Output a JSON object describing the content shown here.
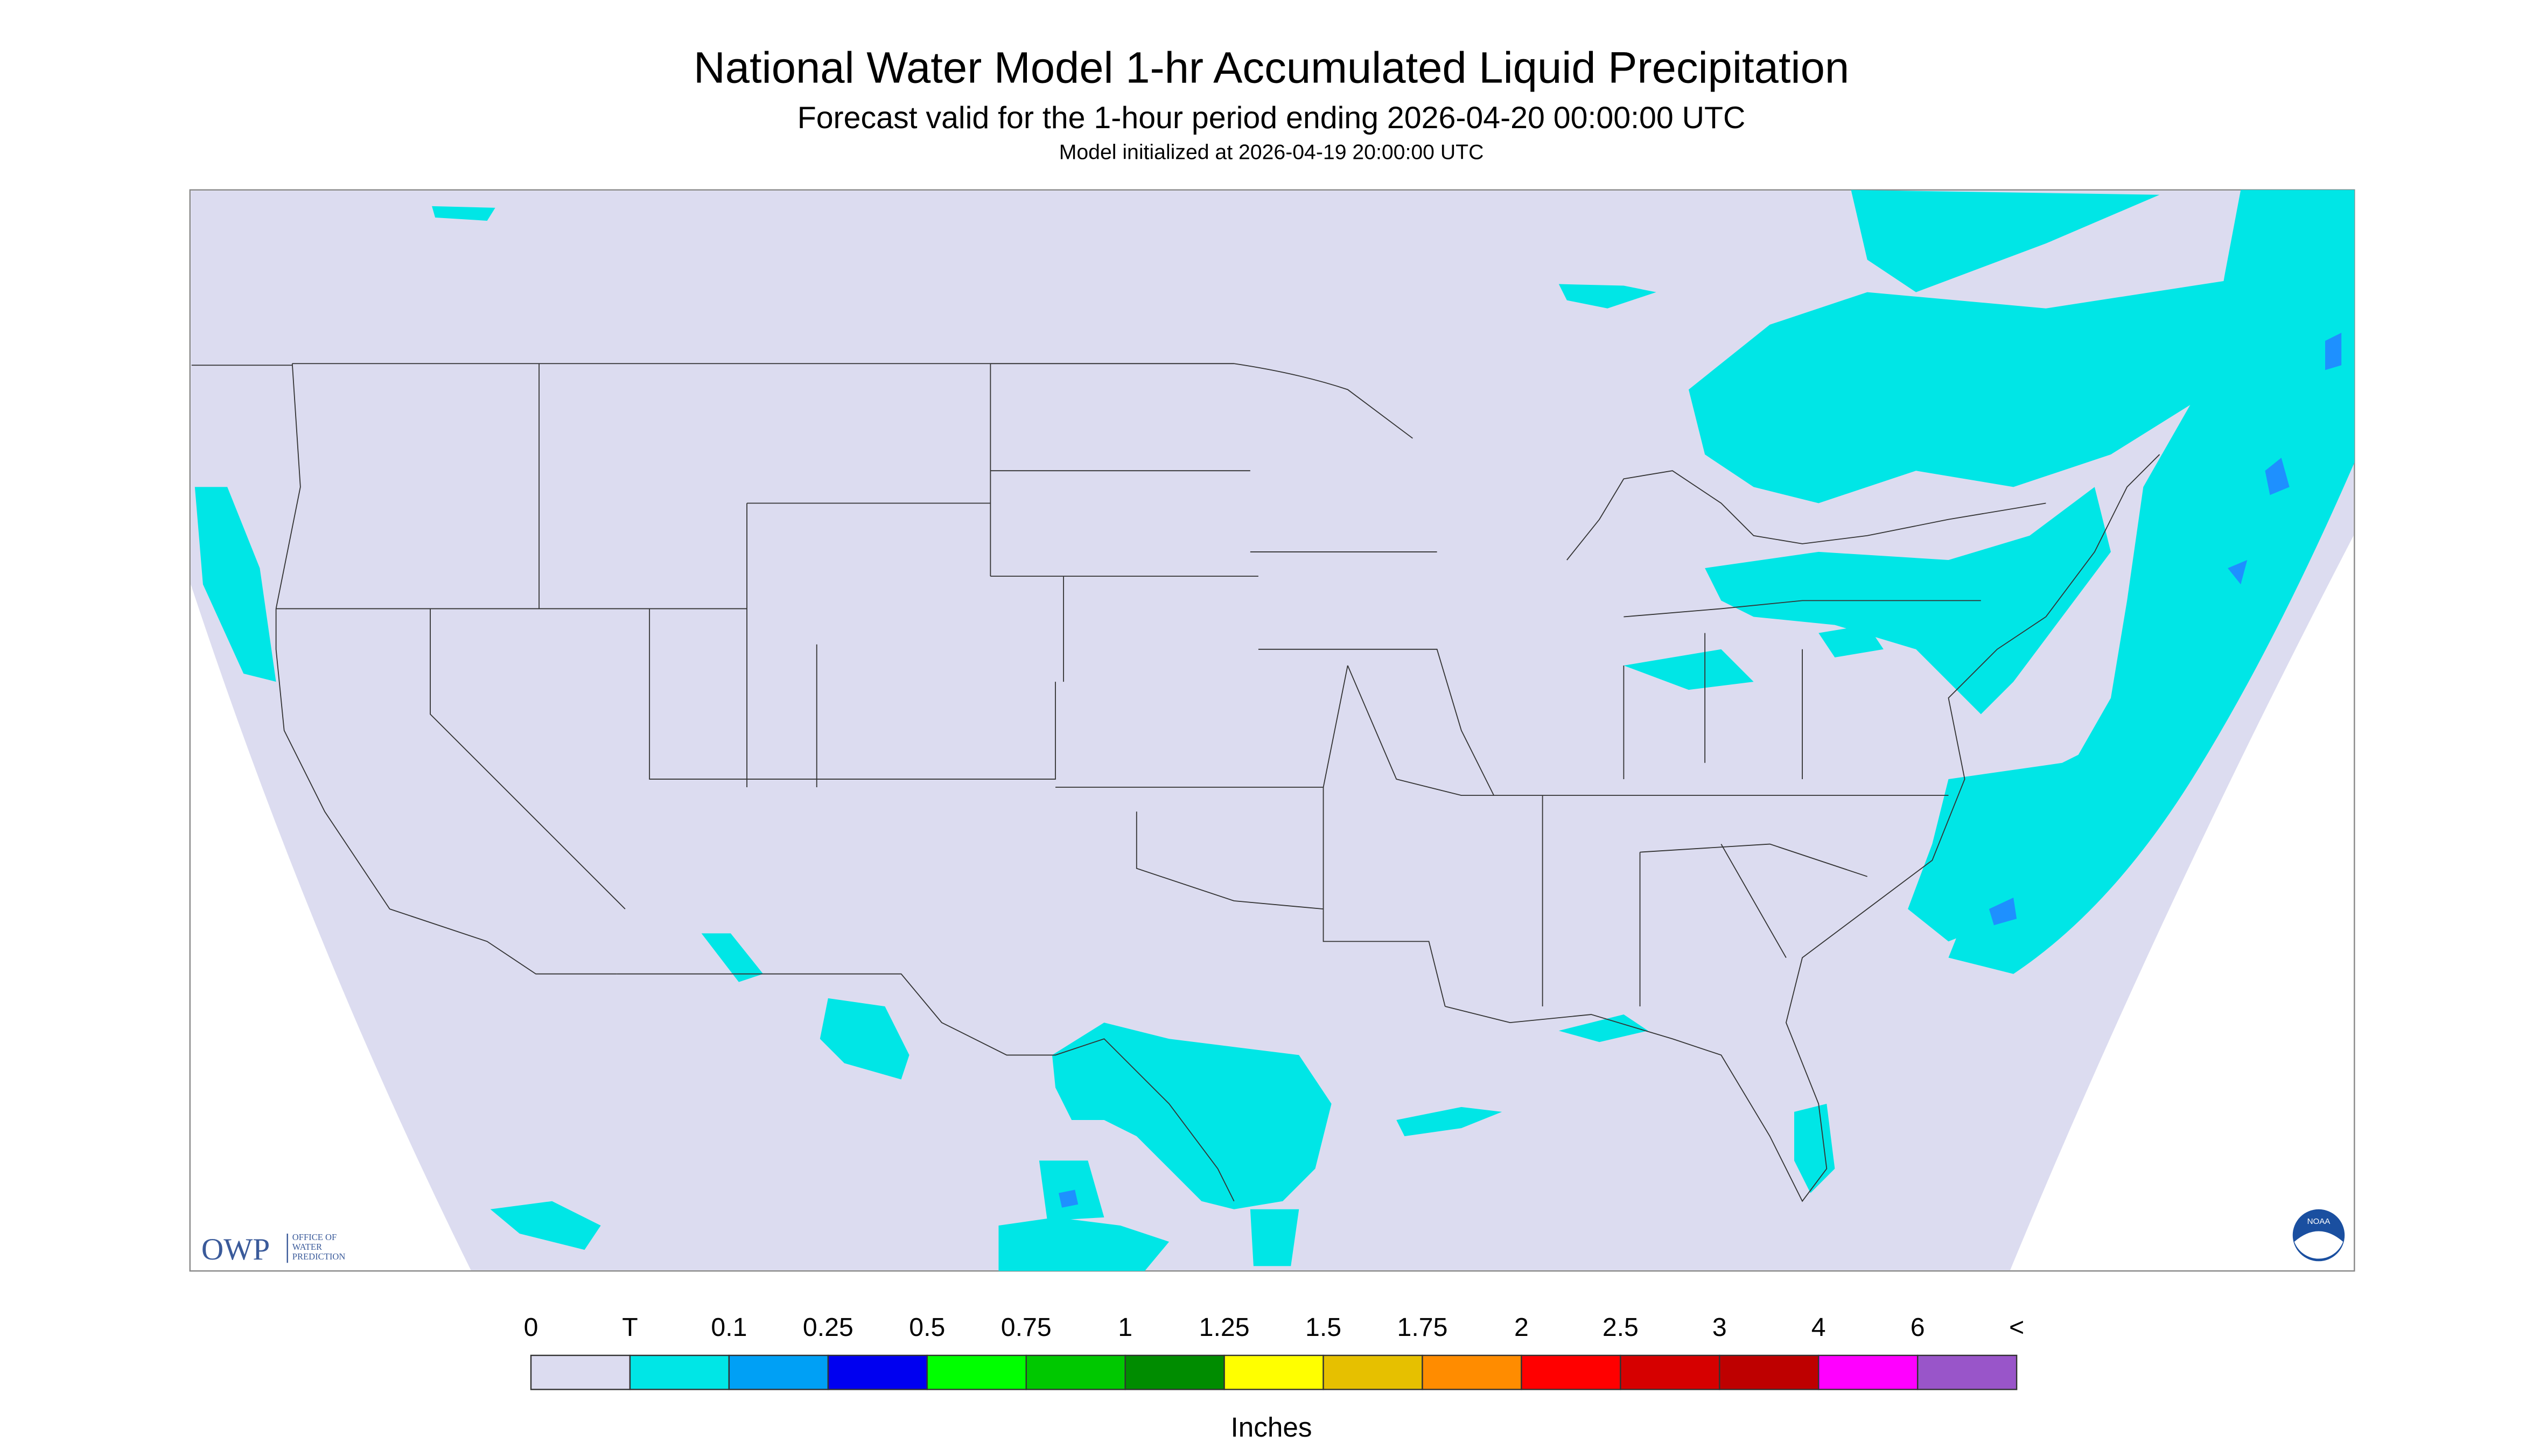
{
  "header": {
    "title": "National Water Model 1-hr Accumulated Liquid Precipitation",
    "subtitle": "Forecast valid for the 1-hour period ending 2026-04-20 00:00:00 UTC",
    "initialized": "Model initialized at 2026-04-19 20:00:00 UTC"
  },
  "legend": {
    "labels": [
      "0",
      "T",
      "0.1",
      "0.25",
      "0.5",
      "0.75",
      "1",
      "1.25",
      "1.5",
      "1.75",
      "2",
      "2.5",
      "3",
      "4",
      "6",
      "<"
    ],
    "colors": [
      "#dcdcf0",
      "#00e6e6",
      "#00a0f5",
      "#0000f0",
      "#00ff00",
      "#00c800",
      "#008c00",
      "#ffff00",
      "#e6c000",
      "#ff8c00",
      "#ff0000",
      "#d60000",
      "#be0000",
      "#ff00ff",
      "#9955c9"
    ],
    "units": "Inches"
  },
  "logo": {
    "abbr": "OWP",
    "lines": [
      "OFFICE OF",
      "WATER",
      "PREDICTION"
    ]
  },
  "agency": "NOAA"
}
